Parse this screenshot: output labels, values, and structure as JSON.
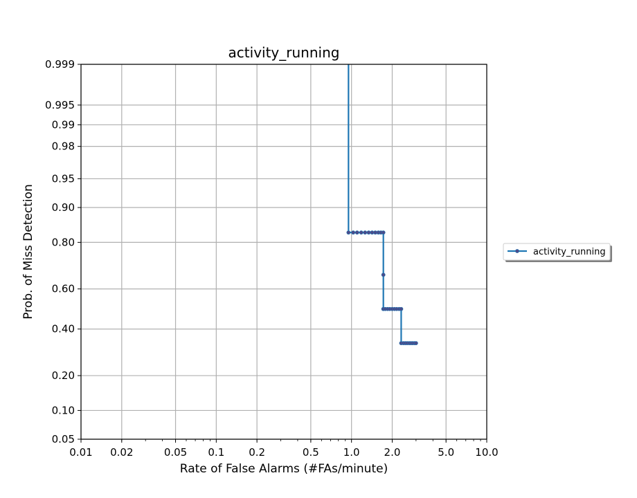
{
  "chart_data": {
    "type": "line",
    "title": "activity_running",
    "xlabel": "Rate of False Alarms (#FAs/minute)",
    "ylabel": "Prob. of Miss Detection",
    "x_scale": "log",
    "y_scale": "probit",
    "xlim": [
      0.01,
      10.0
    ],
    "ylim": [
      0.05,
      0.999
    ],
    "x_ticks": [
      {
        "value": 0.01,
        "label": "0.01"
      },
      {
        "value": 0.02,
        "label": "0.02"
      },
      {
        "value": 0.05,
        "label": "0.05"
      },
      {
        "value": 0.1,
        "label": "0.1"
      },
      {
        "value": 0.2,
        "label": "0.2"
      },
      {
        "value": 0.5,
        "label": "0.5"
      },
      {
        "value": 1.0,
        "label": "1.0"
      },
      {
        "value": 2.0,
        "label": "2.0"
      },
      {
        "value": 5.0,
        "label": "5.0"
      },
      {
        "value": 10.0,
        "label": "10.0"
      }
    ],
    "y_ticks": [
      {
        "value": 0.05,
        "label": "0.05"
      },
      {
        "value": 0.1,
        "label": "0.10"
      },
      {
        "value": 0.2,
        "label": "0.20"
      },
      {
        "value": 0.4,
        "label": "0.40"
      },
      {
        "value": 0.6,
        "label": "0.60"
      },
      {
        "value": 0.8,
        "label": "0.80"
      },
      {
        "value": 0.9,
        "label": "0.90"
      },
      {
        "value": 0.95,
        "label": "0.95"
      },
      {
        "value": 0.98,
        "label": "0.98"
      },
      {
        "value": 0.99,
        "label": "0.99"
      },
      {
        "value": 0.995,
        "label": "0.995"
      },
      {
        "value": 0.999,
        "label": "0.999"
      }
    ],
    "grid": true,
    "legend_position": "outside-right",
    "series": [
      {
        "name": "activity_running",
        "color": "#1f77b4",
        "marker_color": "#4b4b8a",
        "x": [
          0.95,
          0.95,
          1.03,
          1.1,
          1.18,
          1.26,
          1.34,
          1.42,
          1.5,
          1.58,
          1.65,
          1.72,
          1.72,
          1.72,
          1.72,
          1.78,
          1.85,
          1.92,
          2.0,
          2.08,
          2.16,
          2.25,
          2.33,
          2.33,
          2.42,
          2.5,
          2.58,
          2.67,
          2.75,
          2.83,
          2.92,
          3.0
        ],
        "y": [
          0.999,
          0.833,
          0.833,
          0.833,
          0.833,
          0.833,
          0.833,
          0.833,
          0.833,
          0.833,
          0.833,
          0.833,
          0.667,
          0.5,
          0.5,
          0.5,
          0.5,
          0.5,
          0.5,
          0.5,
          0.5,
          0.5,
          0.5,
          0.333,
          0.333,
          0.333,
          0.333,
          0.333,
          0.333,
          0.333,
          0.333,
          0.333
        ],
        "markers": [
          false,
          true,
          true,
          true,
          true,
          true,
          true,
          true,
          true,
          true,
          true,
          true,
          true,
          true,
          true,
          true,
          true,
          true,
          true,
          true,
          true,
          true,
          true,
          true,
          true,
          true,
          true,
          true,
          true,
          true,
          true,
          true
        ]
      }
    ]
  }
}
